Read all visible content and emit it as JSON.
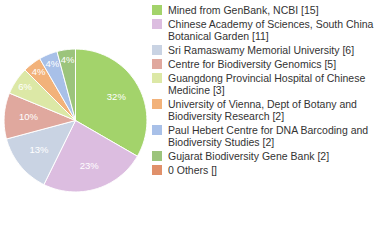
{
  "chart_data": {
    "type": "pie",
    "categories": [
      "Mined from GenBank, NCBI [15]",
      "Chinese Academy of Sciences, South China Botanical Garden [11]",
      "Sri Ramaswamy Memorial University [6]",
      "Centre for Biodiversity Genomics [5]",
      "Guangdong Provincial Hospital of Chinese Medicine [3]",
      "University of Vienna, Dept of Botany and Biodiversity Research [2]",
      "Paul Hebert Centre for DNA Barcoding and Biodiversity Studies [2]",
      "Gujarat Biodiversity Gene Bank [2]",
      "0 Others []"
    ],
    "values": [
      32,
      23,
      13,
      10,
      6,
      4,
      4,
      4,
      0
    ],
    "value_labels": [
      "32%",
      "23%",
      "13%",
      "10%",
      "6%",
      "4%",
      "4%",
      "4%",
      null
    ],
    "colors": [
      "#a3d36b",
      "#dcbde0",
      "#c9d3e3",
      "#e0a89e",
      "#dce8a6",
      "#f2b27a",
      "#a8c0e8",
      "#9cc47c",
      "#e0906a"
    ],
    "data_labels": true,
    "legend": "right"
  }
}
